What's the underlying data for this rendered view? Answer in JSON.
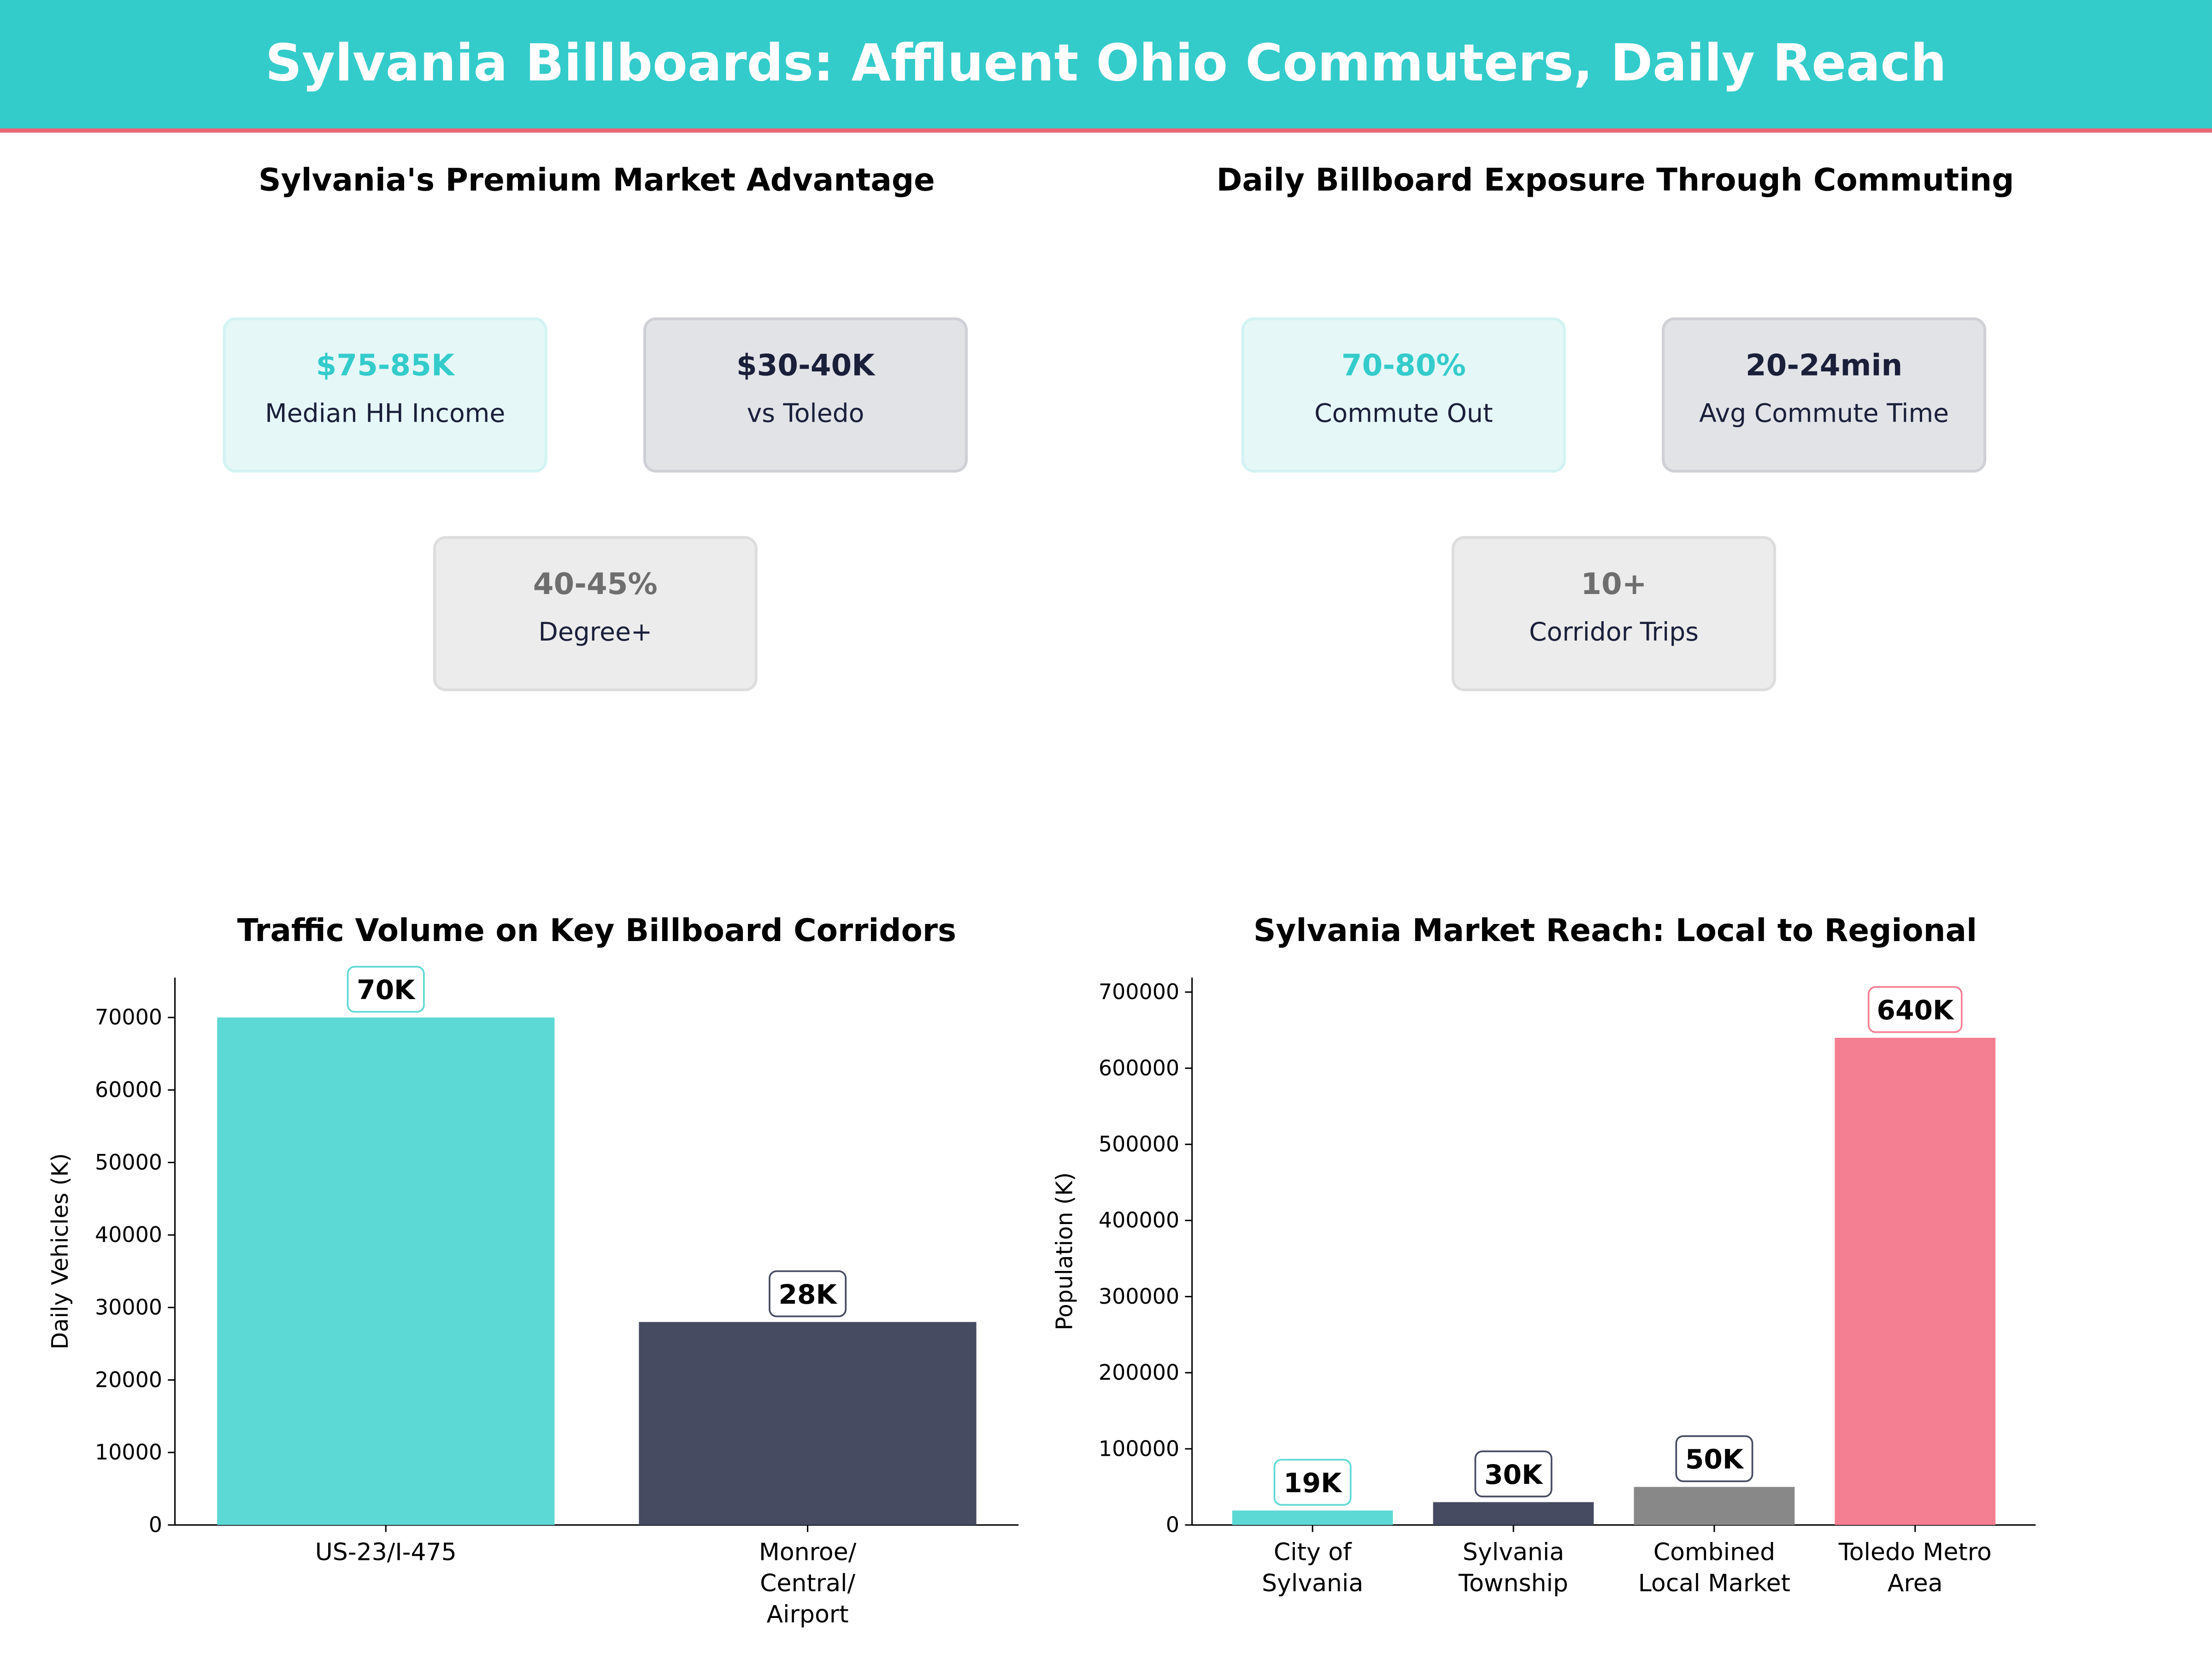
{
  "header": {
    "title": "Sylvania Billboards: Affluent Ohio Commuters, Daily Reach"
  },
  "colors": {
    "header": "#34CBCB",
    "accent_line": "#EE6677",
    "teal": "#5DD9D5",
    "dark": "#464B62",
    "gray": "#888888",
    "pink": "#F57F92"
  },
  "market": {
    "title": "Sylvania's Premium Market Advantage",
    "cards": [
      {
        "value": "$75-85K",
        "label": "Median HH Income"
      },
      {
        "value": "$30-40K",
        "label": "vs Toledo"
      },
      {
        "value": "40-45%",
        "label": "Degree+"
      }
    ]
  },
  "exposure": {
    "title": "Daily Billboard Exposure Through Commuting",
    "cards": [
      {
        "value": "70-80%",
        "label": "Commute Out"
      },
      {
        "value": "20-24min",
        "label": "Avg Commute Time"
      },
      {
        "value": "10+",
        "label": "Corridor Trips"
      }
    ]
  },
  "chart_data": [
    {
      "type": "bar",
      "title": "Traffic Volume on Key Billboard Corridors",
      "xlabel": "",
      "ylabel": "Daily Vehicles (K)",
      "categories": [
        [
          "US-23/I-475"
        ],
        [
          "Monroe/",
          "Central/",
          "Airport"
        ]
      ],
      "values": [
        70000,
        28000
      ],
      "data_labels": [
        "70K",
        "28K"
      ],
      "colors": [
        "#5DD9D5",
        "#464B62"
      ],
      "label_borders": [
        "#5DD9D5",
        "#464B62"
      ],
      "ylim": [
        0,
        75500
      ],
      "yticks": [
        0,
        10000,
        20000,
        30000,
        40000,
        50000,
        60000,
        70000
      ],
      "grid": false
    },
    {
      "type": "bar",
      "title": "Sylvania Market Reach: Local to Regional",
      "xlabel": "",
      "ylabel": "Population (K)",
      "categories": [
        [
          "City of",
          "Sylvania"
        ],
        [
          "Sylvania",
          "Township"
        ],
        [
          "Combined",
          "Local Market"
        ],
        [
          "Toledo Metro",
          "Area"
        ]
      ],
      "values": [
        19000,
        30000,
        50000,
        640000
      ],
      "data_labels": [
        "19K",
        "30K",
        "50K",
        "640K"
      ],
      "colors": [
        "#5DD9D5",
        "#464B62",
        "#888888",
        "#F57F92"
      ],
      "label_borders": [
        "#5DD9D5",
        "#464B62",
        "#464B62",
        "#F57F92"
      ],
      "ylim": [
        0,
        719000
      ],
      "yticks": [
        0,
        100000,
        200000,
        300000,
        400000,
        500000,
        600000,
        700000
      ],
      "grid": false
    }
  ]
}
